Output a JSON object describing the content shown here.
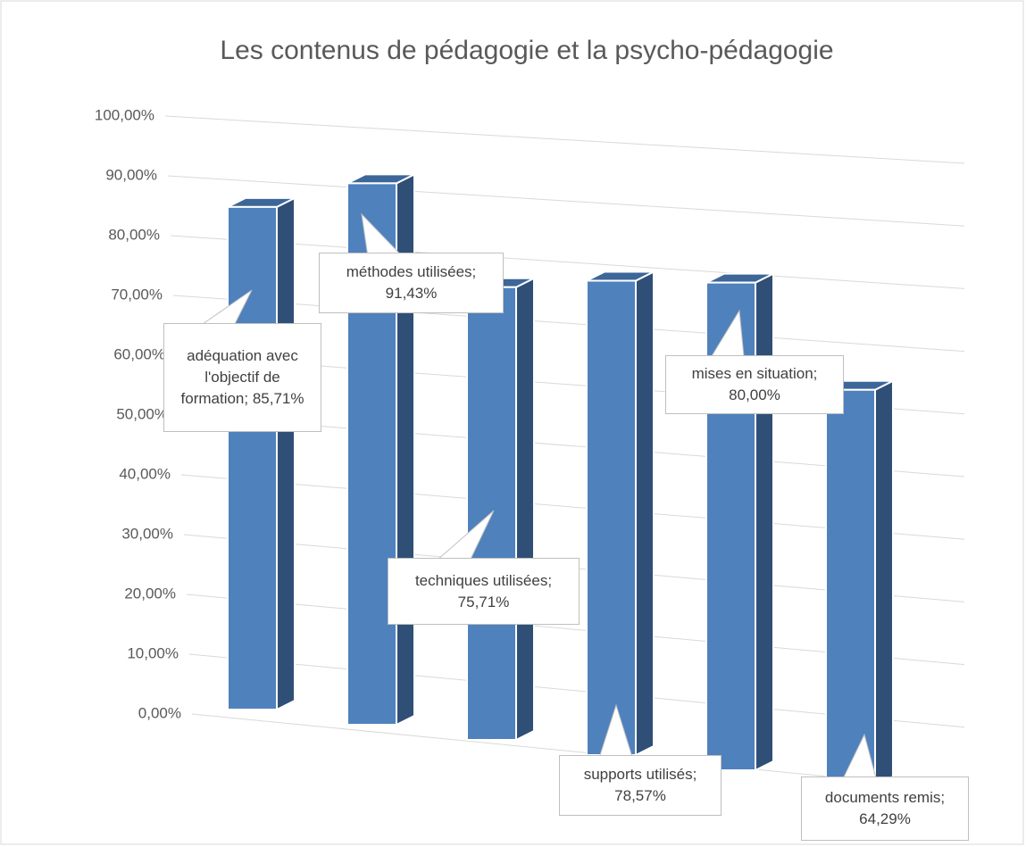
{
  "chart_data": {
    "type": "bar",
    "title": "Les contenus de pédagogie et la psycho-pédagogie",
    "values": [
      85.71,
      91.43,
      75.71,
      78.57,
      80.0,
      64.29
    ],
    "value_labels": [
      "adéquation avec l'objectif de formation; 85,71%",
      "méthodes utilisées; 91,43%",
      "techniques utilisées; 75,71%",
      "supports utilisés; 78,57%",
      "mises en situation; 80,00%",
      "documents remis; 64,29%"
    ],
    "color": "#4f81bd",
    "ylim": [
      0,
      100
    ],
    "yticks": [
      {
        "value": 0,
        "label": "0,00%"
      },
      {
        "value": 10,
        "label": "10,00%"
      },
      {
        "value": 20,
        "label": "20,00%"
      },
      {
        "value": 30,
        "label": "30,00%"
      },
      {
        "value": 40,
        "label": "40,00%"
      },
      {
        "value": 50,
        "label": "50,00%"
      },
      {
        "value": 60,
        "label": "60,00%"
      },
      {
        "value": 70,
        "label": "70,00%"
      },
      {
        "value": 80,
        "label": "80,00%"
      },
      {
        "value": 90,
        "label": "90,00%"
      },
      {
        "value": 100,
        "label": "100,00%"
      }
    ],
    "grid": true
  }
}
